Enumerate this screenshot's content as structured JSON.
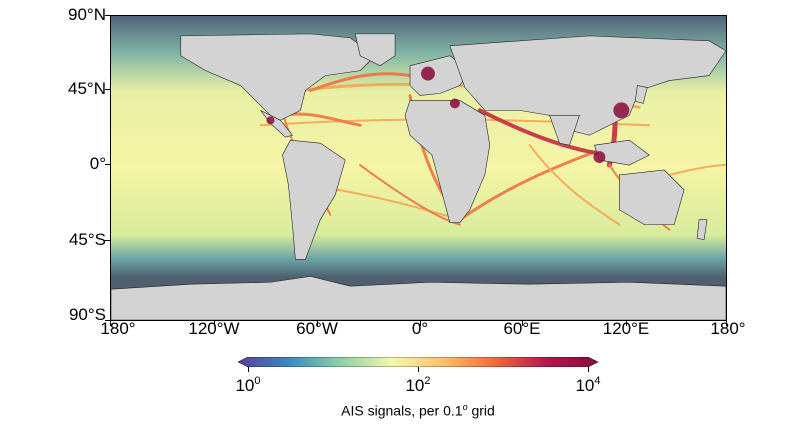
{
  "map": {
    "lat_labels": [
      "90°N",
      "45°N",
      "0°",
      "45°S",
      "90°S"
    ],
    "lon_labels": [
      "180°",
      "120°W",
      "60°W",
      "0°",
      "60°E",
      "120°E",
      "180°"
    ],
    "colors": {
      "land": "#d3d3d3",
      "ocean_low": "#4e6070",
      "traffic_low": "#f6f4a6",
      "traffic_mid": "#f8a04e",
      "traffic_high": "#c21f3a",
      "traffic_max": "#8a0a3b"
    }
  },
  "colorbar": {
    "base_labels": [
      "10",
      "10",
      "10"
    ],
    "exponents": [
      "0",
      "2",
      "4"
    ],
    "title_prefix": "AIS signals, per 0.1",
    "title_sup": "o",
    "title_suffix": " grid",
    "colors": [
      "#5a3e9a",
      "#3b8bc2",
      "#8fd0a4",
      "#f4f7b0",
      "#fdc06a",
      "#f06b3c",
      "#b3174d",
      "#8a0a3b"
    ]
  }
}
